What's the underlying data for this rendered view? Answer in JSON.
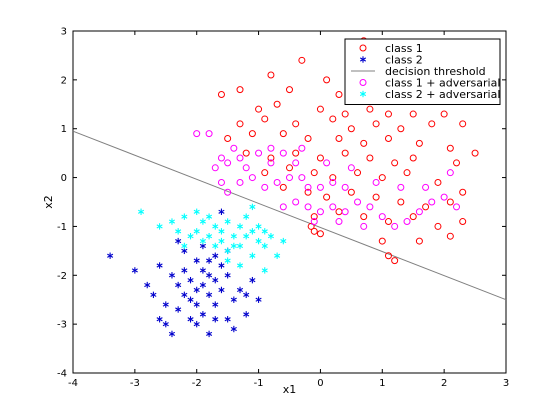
{
  "chart_data": {
    "type": "scatter",
    "title": "",
    "xlabel": "x1",
    "ylabel": "x2",
    "xlim": [
      -4,
      3
    ],
    "ylim": [
      -4,
      3
    ],
    "xticks": [
      -4,
      -3,
      -2,
      -1,
      0,
      1,
      2,
      3
    ],
    "yticks": [
      -4,
      -3,
      -2,
      -1,
      0,
      1,
      2,
      3
    ],
    "grid": false,
    "legend_position": "top-right",
    "series": [
      {
        "name": "class 1",
        "marker": "circle-open",
        "color": "#ff0000",
        "points": [
          [
            -0.3,
            2.4
          ],
          [
            0.7,
            2.8
          ],
          [
            1.3,
            2.6
          ],
          [
            -0.8,
            2.1
          ],
          [
            1.6,
            2.2
          ],
          [
            0.1,
            2.0
          ],
          [
            1.0,
            2.1
          ],
          [
            1.9,
            2.0
          ],
          [
            -1.3,
            1.8
          ],
          [
            -1.6,
            1.7
          ],
          [
            -0.5,
            1.8
          ],
          [
            0.3,
            1.7
          ],
          [
            0.6,
            1.6
          ],
          [
            0.9,
            1.7
          ],
          [
            1.2,
            1.8
          ],
          [
            1.7,
            1.7
          ],
          [
            -1.0,
            1.4
          ],
          [
            -0.7,
            1.5
          ],
          [
            0.0,
            1.4
          ],
          [
            0.4,
            1.3
          ],
          [
            0.8,
            1.4
          ],
          [
            1.1,
            1.3
          ],
          [
            1.5,
            1.3
          ],
          [
            2.0,
            1.3
          ],
          [
            2.3,
            1.1
          ],
          [
            -1.3,
            1.1
          ],
          [
            -0.9,
            1.2
          ],
          [
            -0.4,
            1.1
          ],
          [
            0.2,
            1.2
          ],
          [
            0.5,
            1.0
          ],
          [
            0.9,
            1.1
          ],
          [
            1.3,
            1.0
          ],
          [
            1.8,
            1.1
          ],
          [
            -1.5,
            0.8
          ],
          [
            -1.1,
            0.9
          ],
          [
            -0.6,
            0.9
          ],
          [
            -0.2,
            0.8
          ],
          [
            0.3,
            0.8
          ],
          [
            0.7,
            0.7
          ],
          [
            1.1,
            0.8
          ],
          [
            1.6,
            0.7
          ],
          [
            2.1,
            0.6
          ],
          [
            2.5,
            0.5
          ],
          [
            -1.2,
            0.5
          ],
          [
            -0.8,
            0.4
          ],
          [
            -0.4,
            0.5
          ],
          [
            0.0,
            0.4
          ],
          [
            0.4,
            0.5
          ],
          [
            0.8,
            0.4
          ],
          [
            1.2,
            0.3
          ],
          [
            1.5,
            0.4
          ],
          [
            2.2,
            0.3
          ],
          [
            -0.9,
            0.1
          ],
          [
            -0.5,
            0.2
          ],
          [
            -0.1,
            0.1
          ],
          [
            0.2,
            0.0
          ],
          [
            0.6,
            0.1
          ],
          [
            1.0,
            0.0
          ],
          [
            1.4,
            0.1
          ],
          [
            1.9,
            -0.1
          ],
          [
            2.3,
            -0.3
          ],
          [
            -0.6,
            -0.2
          ],
          [
            -0.2,
            -0.3
          ],
          [
            0.1,
            -0.4
          ],
          [
            0.5,
            -0.3
          ],
          [
            0.9,
            -0.4
          ],
          [
            1.3,
            -0.5
          ],
          [
            1.7,
            -0.6
          ],
          [
            2.1,
            -0.5
          ],
          [
            -0.1,
            -0.8
          ],
          [
            0.3,
            -0.7
          ],
          [
            0.7,
            -0.8
          ],
          [
            1.1,
            -0.9
          ],
          [
            1.5,
            -0.8
          ],
          [
            1.9,
            -1.0
          ],
          [
            -0.1,
            -1.1
          ],
          [
            0.0,
            -1.15
          ],
          [
            -0.15,
            -1.0
          ],
          [
            1.0,
            -1.3
          ],
          [
            1.1,
            -1.6
          ],
          [
            1.2,
            -1.7
          ],
          [
            1.6,
            -1.3
          ],
          [
            2.1,
            -1.2
          ],
          [
            2.3,
            -0.9
          ]
        ]
      },
      {
        "name": "class 2",
        "marker": "asterisk",
        "color": "#0000cc",
        "points": [
          [
            -3.4,
            -1.6
          ],
          [
            -3.0,
            -1.9
          ],
          [
            -2.8,
            -2.2
          ],
          [
            -2.7,
            -2.4
          ],
          [
            -2.6,
            -1.8
          ],
          [
            -2.5,
            -2.6
          ],
          [
            -2.5,
            -3.0
          ],
          [
            -2.3,
            -2.2
          ],
          [
            -2.3,
            -2.7
          ],
          [
            -2.2,
            -1.9
          ],
          [
            -2.2,
            -2.4
          ],
          [
            -2.1,
            -2.1
          ],
          [
            -2.1,
            -2.9
          ],
          [
            -2.0,
            -1.7
          ],
          [
            -2.0,
            -2.3
          ],
          [
            -2.0,
            -2.6
          ],
          [
            -1.9,
            -1.9
          ],
          [
            -1.9,
            -2.2
          ],
          [
            -1.9,
            -2.8
          ],
          [
            -1.8,
            -2.0
          ],
          [
            -1.8,
            -2.4
          ],
          [
            -1.8,
            -3.2
          ],
          [
            -1.7,
            -1.6
          ],
          [
            -1.7,
            -2.1
          ],
          [
            -1.7,
            -2.6
          ],
          [
            -1.6,
            -1.8
          ],
          [
            -1.6,
            -2.3
          ],
          [
            -1.5,
            -2.0
          ],
          [
            -1.5,
            -2.9
          ],
          [
            -1.4,
            -2.5
          ],
          [
            -1.3,
            -2.3
          ],
          [
            -1.2,
            -2.4
          ],
          [
            -1.2,
            -2.8
          ],
          [
            -1.0,
            -2.5
          ],
          [
            -1.1,
            -2.1
          ],
          [
            -1.4,
            -3.1
          ],
          [
            -2.4,
            -3.2
          ],
          [
            -2.6,
            -2.9
          ],
          [
            -2.2,
            -1.5
          ],
          [
            -2.3,
            -1.3
          ],
          [
            -1.9,
            -1.4
          ],
          [
            -2.0,
            -3.0
          ],
          [
            -1.7,
            -2.9
          ],
          [
            -1.5,
            -1.5
          ],
          [
            -1.6,
            -0.7
          ],
          [
            -2.4,
            -2.0
          ],
          [
            -2.1,
            -2.5
          ],
          [
            -1.8,
            -1.7
          ]
        ]
      },
      {
        "name": "decision threshold",
        "marker": "line",
        "color": "#808080",
        "points": [
          [
            -4,
            0.95
          ],
          [
            3,
            -2.5
          ]
        ]
      },
      {
        "name": "class 1 + adversarial",
        "marker": "circle-open",
        "color": "#ff00ff",
        "points": [
          [
            -2.0,
            0.9
          ],
          [
            -1.8,
            0.9
          ],
          [
            -1.4,
            0.6
          ],
          [
            -1.6,
            0.4
          ],
          [
            -1.5,
            0.3
          ],
          [
            -1.3,
            0.4
          ],
          [
            -1.2,
            0.2
          ],
          [
            -1.0,
            0.5
          ],
          [
            -0.8,
            0.6
          ],
          [
            -1.7,
            0.2
          ],
          [
            -1.6,
            -0.1
          ],
          [
            -1.5,
            -0.3
          ],
          [
            -1.3,
            -0.1
          ],
          [
            -1.1,
            0.0
          ],
          [
            -0.9,
            -0.2
          ],
          [
            -0.7,
            -0.1
          ],
          [
            -0.5,
            0.0
          ],
          [
            -0.8,
            0.3
          ],
          [
            -0.6,
            0.5
          ],
          [
            -0.4,
            0.3
          ],
          [
            -0.3,
            0.0
          ],
          [
            -0.2,
            -0.2
          ],
          [
            0.0,
            -0.2
          ],
          [
            0.2,
            -0.1
          ],
          [
            0.4,
            -0.2
          ],
          [
            -0.6,
            -0.6
          ],
          [
            -0.4,
            -0.5
          ],
          [
            -0.2,
            -0.6
          ],
          [
            0.0,
            -0.7
          ],
          [
            0.2,
            -0.6
          ],
          [
            0.4,
            -0.7
          ],
          [
            0.6,
            -0.5
          ],
          [
            0.8,
            -0.6
          ],
          [
            1.0,
            -0.8
          ],
          [
            1.2,
            -1.0
          ],
          [
            1.4,
            -0.9
          ],
          [
            1.6,
            -0.7
          ],
          [
            1.8,
            -0.5
          ],
          [
            2.0,
            -0.4
          ],
          [
            2.2,
            -0.6
          ],
          [
            -0.3,
            0.6
          ],
          [
            0.1,
            0.3
          ],
          [
            0.5,
            0.2
          ],
          [
            0.9,
            -0.1
          ],
          [
            1.3,
            -0.2
          ],
          [
            1.7,
            -0.2
          ],
          [
            2.1,
            0.1
          ],
          [
            -0.1,
            -0.9
          ],
          [
            0.3,
            -0.9
          ],
          [
            0.7,
            -1.0
          ]
        ]
      },
      {
        "name": "class 2 + adversarial",
        "marker": "asterisk",
        "color": "#00ffff",
        "points": [
          [
            -2.9,
            -0.7
          ],
          [
            -2.6,
            -1.0
          ],
          [
            -2.4,
            -0.9
          ],
          [
            -2.2,
            -0.8
          ],
          [
            -2.0,
            -0.7
          ],
          [
            -1.9,
            -0.9
          ],
          [
            -1.8,
            -0.8
          ],
          [
            -1.7,
            -1.0
          ],
          [
            -1.6,
            -1.1
          ],
          [
            -1.5,
            -0.9
          ],
          [
            -1.4,
            -1.2
          ],
          [
            -1.3,
            -1.0
          ],
          [
            -1.2,
            -0.8
          ],
          [
            -1.1,
            -1.1
          ],
          [
            -1.0,
            -1.3
          ],
          [
            -0.9,
            -1.1
          ],
          [
            -2.3,
            -1.1
          ],
          [
            -2.1,
            -1.2
          ],
          [
            -1.9,
            -1.3
          ],
          [
            -1.7,
            -1.4
          ],
          [
            -1.5,
            -1.5
          ],
          [
            -1.3,
            -1.4
          ],
          [
            -1.1,
            -1.6
          ],
          [
            -0.9,
            -1.4
          ],
          [
            -0.8,
            -1.2
          ],
          [
            -0.6,
            -1.3
          ],
          [
            -0.9,
            -1.9
          ],
          [
            -1.3,
            -1.8
          ],
          [
            -2.0,
            -1.1
          ],
          [
            -1.8,
            -1.2
          ],
          [
            -1.6,
            -1.3
          ],
          [
            -1.4,
            -1.4
          ],
          [
            -1.2,
            -1.2
          ],
          [
            -1.0,
            -1.0
          ],
          [
            -2.2,
            -1.4
          ],
          [
            -1.5,
            -1.7
          ],
          [
            -0.7,
            -1.6
          ],
          [
            -1.1,
            -0.6
          ]
        ]
      }
    ]
  }
}
